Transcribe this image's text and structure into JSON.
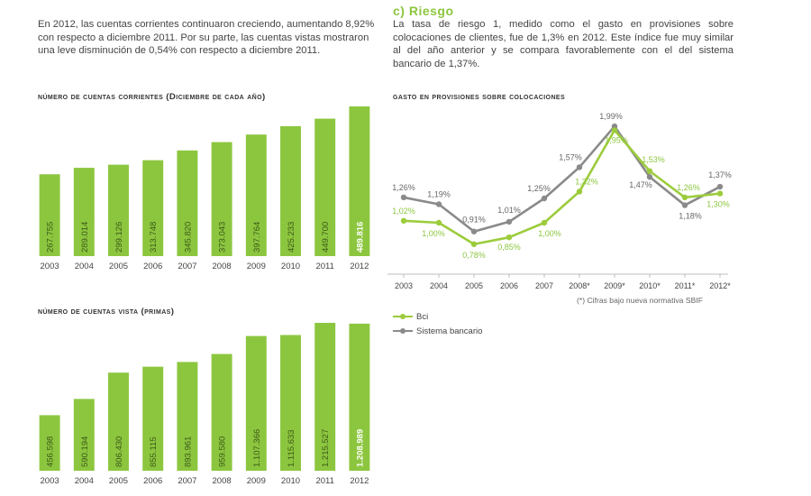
{
  "intro_text": "En 2012, las cuentas corrientes continuaron creciendo, aumentando 8,92% con respecto a diciembre 2011. Por su parte, las cuentas vistas mostraron una leve disminución de 0,54% con respecto a diciembre 2011.",
  "riesgo": {
    "title": "c) Riesgo",
    "text": "La tasa de riesgo 1, medido como el gasto en provisiones sobre colocaciones de clientes, fue de 1,3% en 2012. Este índice fue muy similar al del año anterior y se compara favorablemente con el del sistema bancario de 1,37%."
  },
  "colors": {
    "bar_green": "#8cc63f",
    "bar_green_dark": "#7ab93a",
    "bci_line": "#9ccc3c",
    "sistema_line": "#8a8a8a"
  },
  "chart_data": [
    {
      "type": "bar",
      "title": "número de cuentas corrientes (Diciembre de cada año)",
      "categories": [
        "2003",
        "2004",
        "2005",
        "2006",
        "2007",
        "2008",
        "2009",
        "2010",
        "2011",
        "2012"
      ],
      "values": [
        267755,
        289014,
        299126,
        313748,
        345820,
        373043,
        397764,
        425233,
        449700,
        489816
      ],
      "value_labels": [
        "267.755",
        "289.014",
        "299.126",
        "313.748",
        "345.820",
        "373.043",
        "397.764",
        "425.233",
        "449.700",
        "489.816"
      ],
      "bold_label_index": 9,
      "ylim": [
        0,
        489816
      ]
    },
    {
      "type": "bar",
      "title": "número de cuentas vista (primas)",
      "categories": [
        "2003",
        "2004",
        "2005",
        "2006",
        "2007",
        "2008",
        "2009",
        "2010",
        "2011",
        "2012"
      ],
      "values": [
        456598,
        590194,
        806430,
        855115,
        893961,
        959580,
        1107366,
        1115633,
        1215527,
        1208989
      ],
      "value_labels": [
        "456.598",
        "590.194",
        "806.430",
        "855.115",
        "893.961",
        "959.580",
        "1.107.366",
        "1.115.633",
        "1.215.527",
        "1.208.989"
      ],
      "bold_label_index": 9,
      "ylim": [
        0,
        1215527
      ]
    },
    {
      "type": "line",
      "title": "gasto en provisiones sobre colocaciones",
      "categories": [
        "2003",
        "2004",
        "2005",
        "2006",
        "2007",
        "2008*",
        "2009*",
        "2010*",
        "2011*",
        "2012*"
      ],
      "series": [
        {
          "name": "Bci",
          "values": [
            1.02,
            1.0,
            0.78,
            0.85,
            1.0,
            1.32,
            1.95,
            1.53,
            1.26,
            1.3
          ],
          "labels": [
            "1,02%",
            "1,00%",
            "0,78%",
            "0,85%",
            "1,00%",
            "1,32%",
            "1,95%",
            "1,53%",
            "1,26%",
            "1,30%"
          ]
        },
        {
          "name": "Sistema bancario",
          "values": [
            1.26,
            1.19,
            0.91,
            1.01,
            1.25,
            1.57,
            1.99,
            1.47,
            1.18,
            1.37
          ],
          "labels": [
            "1,26%",
            "1,19%",
            "0,91%",
            "1,01%",
            "1,25%",
            "1,57%",
            "1,99%",
            "1,47%",
            "1,18%",
            "1,37%"
          ]
        }
      ],
      "footnote": "(*) Cifras bajo nueva normativa SBIF"
    }
  ]
}
